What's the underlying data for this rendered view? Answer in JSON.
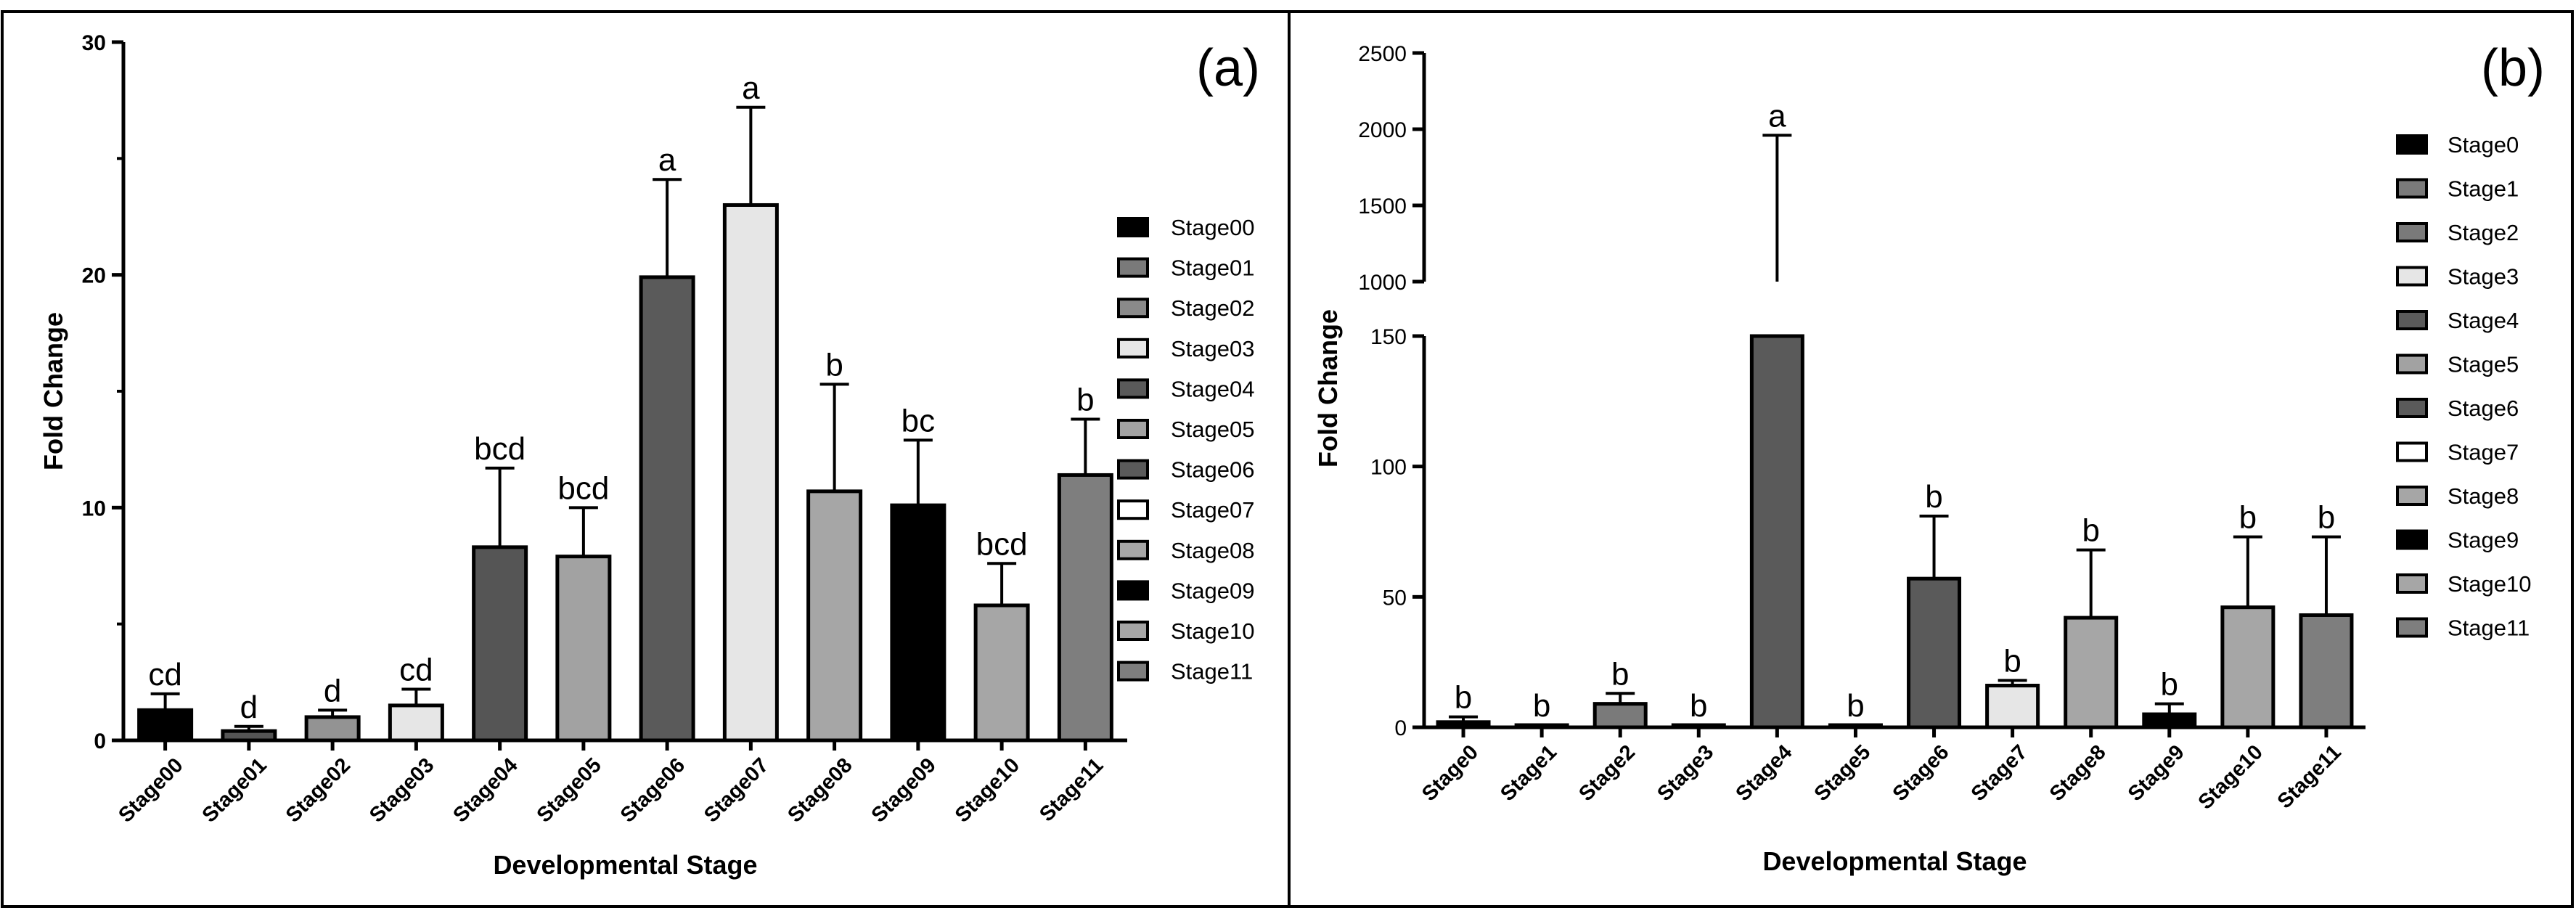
{
  "chart_data": [
    {
      "type": "bar",
      "panel_label": "(a)",
      "xlabel": "Developmental Stage",
      "ylabel": "Fold Change",
      "ylim": [
        0,
        30
      ],
      "yticks": [
        0,
        10,
        20,
        30
      ],
      "categories": [
        "Stage00",
        "Stage01",
        "Stage02",
        "Stage03",
        "Stage04",
        "Stage05",
        "Stage06",
        "Stage07",
        "Stage08",
        "Stage09",
        "Stage10",
        "Stage11"
      ],
      "values": [
        1.3,
        0.4,
        1.0,
        1.5,
        8.3,
        7.9,
        19.9,
        23.0,
        10.7,
        10.1,
        5.8,
        11.4
      ],
      "errors": [
        0.7,
        0.2,
        0.3,
        0.7,
        3.4,
        2.1,
        4.2,
        4.2,
        4.6,
        2.8,
        1.8,
        2.4
      ],
      "letters": [
        "cd",
        "d",
        "d",
        "cd",
        "bcd",
        "bcd",
        "a",
        "a",
        "b",
        "bc",
        "bcd",
        "b"
      ],
      "colors": [
        "#000000",
        "#545454",
        "#939393",
        "#e6e6e6",
        "#555555",
        "#a2a2a2",
        "#5a5a5a",
        "#e6e6e6",
        "#a6a6a6",
        "#000000",
        "#a6a6a6",
        "#7e7e7e"
      ],
      "legend": [
        "Stage00",
        "Stage01",
        "Stage02",
        "Stage03",
        "Stage04",
        "Stage05",
        "Stage06",
        "Stage07",
        "Stage08",
        "Stage09",
        "Stage10",
        "Stage11"
      ],
      "legend_colors": [
        "#000000",
        "#7a7a7a",
        "#8a8a8a",
        "#e6e6e6",
        "#5a5a5a",
        "#a2a2a2",
        "#5a5a5a",
        "#ffffff",
        "#a6a6a6",
        "#000000",
        "#a6a6a6",
        "#7e7e7e"
      ],
      "legend_placement": "right"
    },
    {
      "type": "bar",
      "panel_label": "(b)",
      "xlabel": "Developmental Stage",
      "ylabel": "Fold Change",
      "broken_axis": true,
      "ylim_lower": [
        0,
        150
      ],
      "ylim_upper": [
        1000,
        2500
      ],
      "yticks_lower": [
        0,
        50,
        100,
        150
      ],
      "yticks_upper": [
        1000,
        1500,
        2000,
        2500
      ],
      "categories": [
        "Stage0",
        "Stage1",
        "Stage2",
        "Stage3",
        "Stage4",
        "Stage5",
        "Stage6",
        "Stage7",
        "Stage8",
        "Stage9",
        "Stage10",
        "Stage11"
      ],
      "values": [
        2,
        0.5,
        9,
        0.5,
        1000,
        0.5,
        57,
        16,
        42,
        5,
        46,
        43
      ],
      "errors": [
        2,
        0,
        4,
        0,
        960,
        0,
        24,
        2,
        26,
        4,
        27,
        30
      ],
      "letters": [
        "b",
        "b",
        "b",
        "b",
        "a",
        "b",
        "b",
        "b",
        "b",
        "b",
        "b",
        "b"
      ],
      "colors": [
        "#000000",
        "#7a7a7a",
        "#7a7a7a",
        "#e6e6e6",
        "#5a5a5a",
        "#a2a2a2",
        "#5a5a5a",
        "#e6e6e6",
        "#a6a6a6",
        "#000000",
        "#a6a6a6",
        "#7e7e7e"
      ],
      "legend": [
        "Stage0",
        "Stage1",
        "Stage2",
        "Stage3",
        "Stage4",
        "Stage5",
        "Stage6",
        "Stage7",
        "Stage8",
        "Stage9",
        "Stage10",
        "Stage11"
      ],
      "legend_colors": [
        "#000000",
        "#7a7a7a",
        "#7a7a7a",
        "#e6e6e6",
        "#5a5a5a",
        "#a2a2a2",
        "#5a5a5a",
        "#ffffff",
        "#a6a6a6",
        "#000000",
        "#a6a6a6",
        "#7e7e7e"
      ],
      "legend_placement": "right"
    }
  ]
}
